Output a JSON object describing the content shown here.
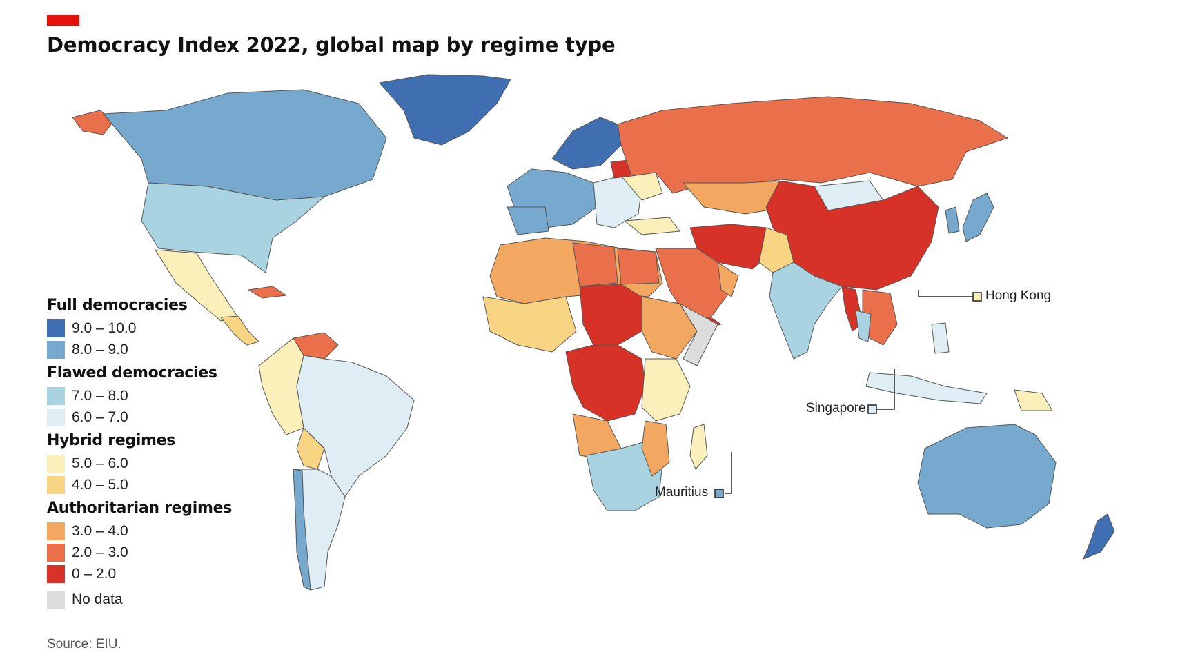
{
  "title": "Democracy Index 2022, global map by regime type",
  "accent_color": "#e3120b",
  "source": "Source: EIU.",
  "legend": {
    "groups": [
      {
        "title": "Full democracies",
        "items": [
          {
            "label": "9.0 – 10.0",
            "color": "#3f6fb0"
          },
          {
            "label": "8.0 – 9.0",
            "color": "#76a9cd"
          }
        ]
      },
      {
        "title": "Flawed democracies",
        "items": [
          {
            "label": "7.0 – 8.0",
            "color": "#a9d3e1"
          },
          {
            "label": "6.0 – 7.0",
            "color": "#dfeef4"
          }
        ]
      },
      {
        "title": "Hybrid regimes",
        "items": [
          {
            "label": "5.0 – 6.0",
            "color": "#fbf0b9"
          },
          {
            "label": "4.0 – 5.0",
            "color": "#f8d582"
          }
        ]
      },
      {
        "title": "Authoritarian regimes",
        "items": [
          {
            "label": "3.0 – 4.0",
            "color": "#f3a861"
          },
          {
            "label": "2.0 – 3.0",
            "color": "#e9704a"
          },
          {
            "label": "0 – 2.0",
            "color": "#d63228"
          }
        ]
      }
    ],
    "no_data": {
      "label": "No data",
      "color": "#dcdcdc"
    }
  },
  "callouts": {
    "hong_kong": {
      "label": "Hong Kong",
      "color": "#fbf0b9"
    },
    "singapore": {
      "label": "Singapore",
      "color": "#dfeef4"
    },
    "mauritius": {
      "label": "Mauritius",
      "color": "#76a9cd"
    }
  }
}
